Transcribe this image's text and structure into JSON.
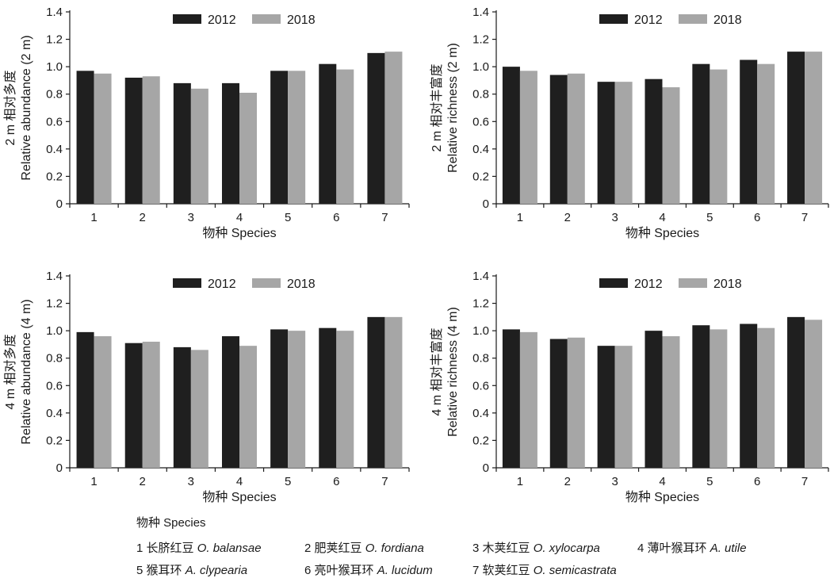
{
  "chart_data": [
    {
      "type": "bar",
      "ylabel_cn": "2 m 相对多度",
      "ylabel_en": "Relative abundance (2 m)",
      "xlabel": "物种 Species",
      "categories": [
        "1",
        "2",
        "3",
        "4",
        "5",
        "6",
        "7"
      ],
      "series": [
        {
          "name": "2012",
          "color": "#1f1f1f",
          "values": [
            0.97,
            0.92,
            0.88,
            0.88,
            0.97,
            1.02,
            1.1
          ]
        },
        {
          "name": "2018",
          "color": "#a6a6a6",
          "values": [
            0.95,
            0.93,
            0.84,
            0.81,
            0.97,
            0.98,
            1.11
          ]
        }
      ],
      "ylim": [
        0,
        1.4
      ],
      "yticks": [
        "0",
        "0.2",
        "0.4",
        "0.6",
        "0.8",
        "1.0",
        "1.2",
        "1.4"
      ],
      "legend": "top-center"
    },
    {
      "type": "bar",
      "ylabel_cn": "2 m 相对丰富度",
      "ylabel_en": "Relative richness (2 m)",
      "xlabel": "物种 Species",
      "categories": [
        "1",
        "2",
        "3",
        "4",
        "5",
        "6",
        "7"
      ],
      "series": [
        {
          "name": "2012",
          "color": "#1f1f1f",
          "values": [
            1.0,
            0.94,
            0.89,
            0.91,
            1.02,
            1.05,
            1.11
          ]
        },
        {
          "name": "2018",
          "color": "#a6a6a6",
          "values": [
            0.97,
            0.95,
            0.89,
            0.85,
            0.98,
            1.02,
            1.11
          ]
        }
      ],
      "ylim": [
        0,
        1.4
      ],
      "yticks": [
        "0",
        "0.2",
        "0.4",
        "0.6",
        "0.8",
        "1.0",
        "1.2",
        "1.4"
      ],
      "legend": "top-center"
    },
    {
      "type": "bar",
      "ylabel_cn": "4 m 相对多度",
      "ylabel_en": "Relative abundance (4 m)",
      "xlabel": "物种 Species",
      "categories": [
        "1",
        "2",
        "3",
        "4",
        "5",
        "6",
        "7"
      ],
      "series": [
        {
          "name": "2012",
          "color": "#1f1f1f",
          "values": [
            0.99,
            0.91,
            0.88,
            0.96,
            1.01,
            1.02,
            1.1
          ]
        },
        {
          "name": "2018",
          "color": "#a6a6a6",
          "values": [
            0.96,
            0.92,
            0.86,
            0.89,
            1.0,
            1.0,
            1.1
          ]
        }
      ],
      "ylim": [
        0,
        1.4
      ],
      "yticks": [
        "0",
        "0.2",
        "0.4",
        "0.6",
        "0.8",
        "1.0",
        "1.2",
        "1.4"
      ],
      "legend": "top-center"
    },
    {
      "type": "bar",
      "ylabel_cn": "4 m 相对丰富度",
      "ylabel_en": "Relative richness (4 m)",
      "xlabel": "物种 Species",
      "categories": [
        "1",
        "2",
        "3",
        "4",
        "5",
        "6",
        "7"
      ],
      "series": [
        {
          "name": "2012",
          "color": "#1f1f1f",
          "values": [
            1.01,
            0.94,
            0.89,
            1.0,
            1.04,
            1.05,
            1.1
          ]
        },
        {
          "name": "2018",
          "color": "#a6a6a6",
          "values": [
            0.99,
            0.95,
            0.89,
            0.96,
            1.01,
            1.02,
            1.08
          ]
        }
      ],
      "ylim": [
        0,
        1.4
      ],
      "yticks": [
        "0",
        "0.2",
        "0.4",
        "0.6",
        "0.8",
        "1.0",
        "1.2",
        "1.4"
      ],
      "legend": "top-center"
    }
  ],
  "species_key": {
    "title": "物种 Species",
    "items": [
      {
        "num": "1",
        "cn": "长脐红豆",
        "latin": "O. balansae"
      },
      {
        "num": "2",
        "cn": "肥荚红豆",
        "latin": "O. fordiana"
      },
      {
        "num": "3",
        "cn": "木荚红豆",
        "latin": "O. xylocarpa"
      },
      {
        "num": "4",
        "cn": "薄叶猴耳环",
        "latin": "A. utile"
      },
      {
        "num": "5",
        "cn": "猴耳环",
        "latin": "A. clypearia"
      },
      {
        "num": "6",
        "cn": "亮叶猴耳环",
        "latin": "A. lucidum"
      },
      {
        "num": "7",
        "cn": "软荚红豆",
        "latin": "O. semicastrata"
      }
    ]
  }
}
